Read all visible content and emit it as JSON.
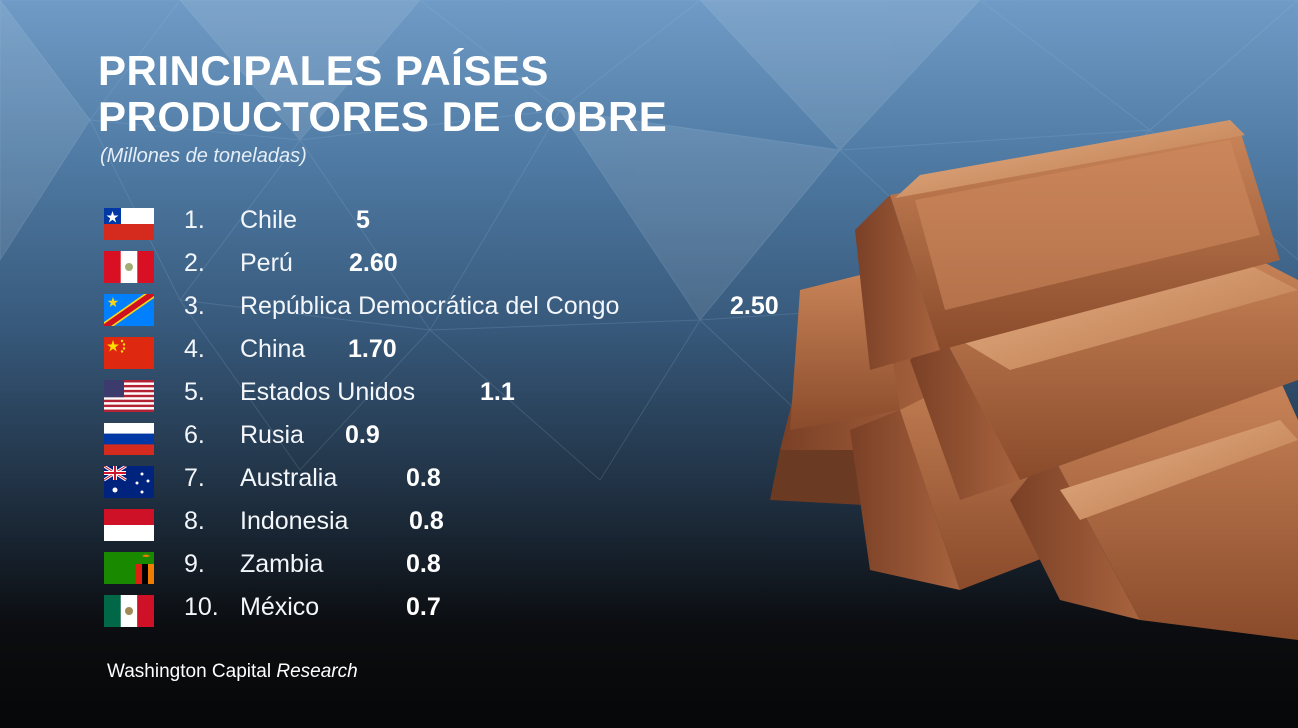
{
  "header": {
    "title_line1": "PRINCIPALES PAÍSES",
    "title_line2": "PRODUCTORES DE COBRE",
    "subtitle": "(Millones de toneladas)"
  },
  "rows": [
    {
      "rank": "1.",
      "country": "Chile",
      "value": "5",
      "flag": "chile-flag-icon"
    },
    {
      "rank": "2.",
      "country": "Perú",
      "value": "2.60",
      "flag": "peru-flag-icon"
    },
    {
      "rank": "3.",
      "country": "República Democrática del Congo",
      "value": "2.50",
      "flag": "dr-congo-flag-icon"
    },
    {
      "rank": "4.",
      "country": "China",
      "value": "1.70",
      "flag": "china-flag-icon"
    },
    {
      "rank": "5.",
      "country": "Estados Unidos",
      "value": "1.1",
      "flag": "usa-flag-icon"
    },
    {
      "rank": "6.",
      "country": "Rusia",
      "value": "0.9",
      "flag": "russia-flag-icon"
    },
    {
      "rank": "7.",
      "country": "Australia",
      "value": "0.8",
      "flag": "australia-flag-icon"
    },
    {
      "rank": "8.",
      "country": "Indonesia",
      "value": "0.8",
      "flag": "indonesia-flag-icon"
    },
    {
      "rank": "9.",
      "country": "Zambia",
      "value": "0.8",
      "flag": "zambia-flag-icon"
    },
    {
      "rank": "10.",
      "country": "México",
      "value": "0.7",
      "flag": "mexico-flag-icon"
    }
  ],
  "footer": {
    "source_main": "Washington Capital",
    "source_italic": "Research"
  },
  "image": {
    "icon": "copper-ingots-icon",
    "colors": {
      "copper_light": "#d79a6c",
      "copper_mid": "#b4714a",
      "copper_dark": "#6b3a22"
    }
  }
}
